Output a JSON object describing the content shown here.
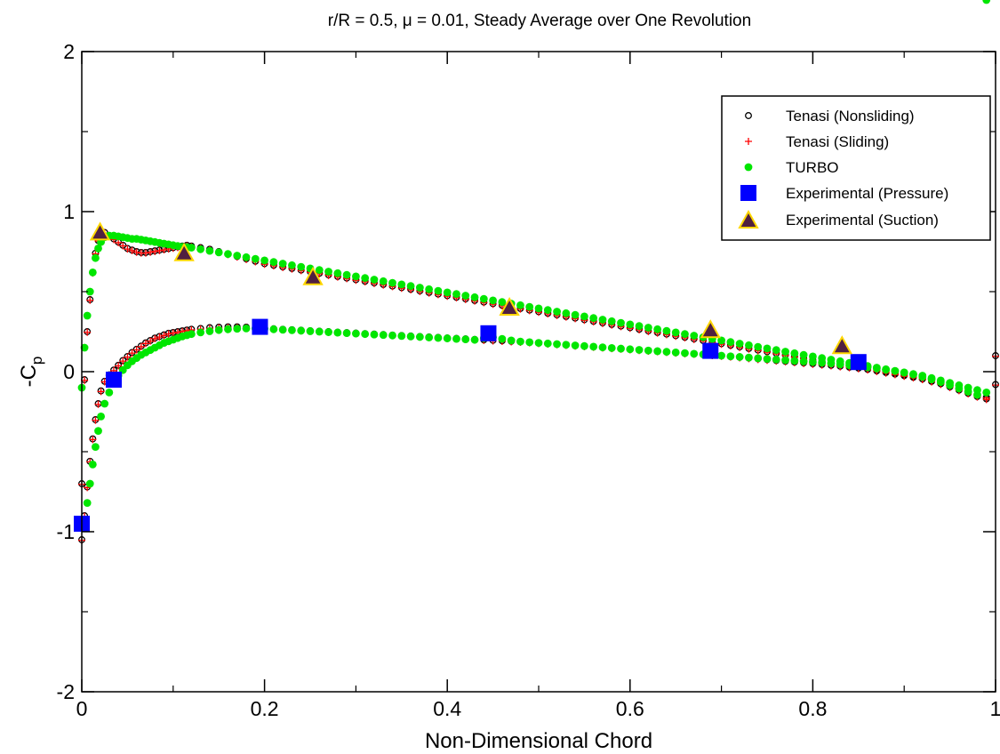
{
  "chart_data": {
    "type": "scatter",
    "title": "r/R = 0.5, μ = 0.01, Steady Average over One Revolution",
    "xlabel": "Non-Dimensional Chord",
    "ylabel_main": "-C",
    "ylabel_sub": "p",
    "xlim": [
      0,
      1
    ],
    "ylim": [
      -2,
      2
    ],
    "xticks": [
      0,
      0.2,
      0.4,
      0.6,
      0.8,
      1
    ],
    "xtick_labels": [
      "0",
      "0.2",
      "0.4",
      "0.6",
      "0.8",
      "1"
    ],
    "yticks": [
      -2,
      -1,
      0,
      1,
      2
    ],
    "ytick_labels": [
      "-2",
      "-1",
      "0",
      "1",
      "2"
    ],
    "grid": false,
    "legend_position": "top-right",
    "series": [
      {
        "name": "Tenasi (Nonsliding)",
        "marker": "open-circle",
        "color": "#000000",
        "upper_x": [
          0,
          0.003,
          0.006,
          0.009,
          0.012,
          0.015,
          0.018,
          0.021,
          0.025,
          0.03,
          0.035,
          0.04,
          0.045,
          0.05,
          0.055,
          0.06,
          0.065,
          0.07,
          0.075,
          0.08,
          0.085,
          0.09,
          0.095,
          0.1,
          0.105,
          0.11,
          0.115,
          0.12,
          0.13,
          0.14,
          0.15,
          0.16,
          0.17,
          0.18,
          0.19,
          0.2,
          0.21,
          0.22,
          0.23,
          0.24,
          0.25,
          0.26,
          0.27,
          0.28,
          0.29,
          0.3,
          0.31,
          0.32,
          0.33,
          0.34,
          0.35,
          0.36,
          0.37,
          0.38,
          0.39,
          0.4,
          0.41,
          0.42,
          0.43,
          0.44,
          0.45,
          0.46,
          0.47,
          0.48,
          0.49,
          0.5,
          0.51,
          0.52,
          0.53,
          0.54,
          0.55,
          0.56,
          0.57,
          0.58,
          0.59,
          0.6,
          0.61,
          0.62,
          0.63,
          0.64,
          0.65,
          0.66,
          0.67,
          0.68,
          0.69,
          0.7,
          0.71,
          0.72,
          0.73,
          0.74,
          0.75,
          0.76,
          0.77,
          0.78,
          0.79,
          0.8,
          0.81,
          0.82,
          0.83,
          0.84,
          0.85,
          0.86,
          0.87,
          0.88,
          0.89,
          0.9,
          0.91,
          0.92,
          0.93,
          0.94,
          0.95,
          0.96,
          0.97,
          0.98,
          0.99,
          1.0
        ],
        "upper_y": [
          -0.7,
          -0.05,
          0.25,
          0.45,
          0.62,
          0.74,
          0.82,
          0.86,
          0.87,
          0.85,
          0.83,
          0.81,
          0.79,
          0.77,
          0.76,
          0.75,
          0.745,
          0.745,
          0.75,
          0.755,
          0.76,
          0.765,
          0.77,
          0.775,
          0.78,
          0.785,
          0.79,
          0.785,
          0.775,
          0.765,
          0.75,
          0.735,
          0.72,
          0.705,
          0.69,
          0.675,
          0.665,
          0.655,
          0.645,
          0.635,
          0.625,
          0.615,
          0.605,
          0.595,
          0.585,
          0.575,
          0.565,
          0.555,
          0.545,
          0.535,
          0.525,
          0.515,
          0.505,
          0.495,
          0.485,
          0.475,
          0.465,
          0.455,
          0.445,
          0.435,
          0.425,
          0.415,
          0.405,
          0.395,
          0.385,
          0.375,
          0.365,
          0.355,
          0.345,
          0.335,
          0.325,
          0.315,
          0.305,
          0.295,
          0.285,
          0.275,
          0.265,
          0.255,
          0.245,
          0.235,
          0.225,
          0.215,
          0.205,
          0.195,
          0.185,
          0.175,
          0.165,
          0.155,
          0.145,
          0.135,
          0.125,
          0.115,
          0.105,
          0.095,
          0.085,
          0.075,
          0.065,
          0.055,
          0.045,
          0.035,
          0.025,
          0.015,
          0.005,
          -0.005,
          -0.015,
          -0.025,
          -0.035,
          -0.045,
          -0.06,
          -0.075,
          -0.09,
          -0.105,
          -0.12,
          -0.14,
          -0.16,
          0.1
        ],
        "lower_x": [
          0,
          0.003,
          0.006,
          0.009,
          0.012,
          0.015,
          0.018,
          0.021,
          0.025,
          0.03,
          0.035,
          0.04,
          0.045,
          0.05,
          0.055,
          0.06,
          0.065,
          0.07,
          0.075,
          0.08,
          0.085,
          0.09,
          0.095,
          0.1,
          0.105,
          0.11,
          0.115,
          0.12,
          0.13,
          0.14,
          0.15,
          0.16,
          0.17,
          0.18,
          0.19,
          0.2,
          0.21,
          0.22,
          0.23,
          0.24,
          0.25,
          0.26,
          0.27,
          0.28,
          0.29,
          0.3,
          0.31,
          0.32,
          0.33,
          0.34,
          0.35,
          0.36,
          0.37,
          0.38,
          0.39,
          0.4,
          0.41,
          0.42,
          0.43,
          0.44,
          0.45,
          0.46,
          0.47,
          0.48,
          0.49,
          0.5,
          0.51,
          0.52,
          0.53,
          0.54,
          0.55,
          0.56,
          0.57,
          0.58,
          0.59,
          0.6,
          0.61,
          0.62,
          0.63,
          0.64,
          0.65,
          0.66,
          0.67,
          0.68,
          0.69,
          0.7,
          0.71,
          0.72,
          0.73,
          0.74,
          0.75,
          0.76,
          0.77,
          0.78,
          0.79,
          0.8,
          0.81,
          0.82,
          0.83,
          0.84,
          0.85,
          0.86,
          0.87,
          0.88,
          0.89,
          0.9,
          0.91,
          0.92,
          0.93,
          0.94,
          0.95,
          0.96,
          0.97,
          0.98,
          0.99,
          1.0
        ],
        "lower_y": [
          -1.05,
          -0.9,
          -0.72,
          -0.56,
          -0.42,
          -0.3,
          -0.2,
          -0.12,
          -0.06,
          -0.02,
          0.01,
          0.04,
          0.07,
          0.095,
          0.12,
          0.14,
          0.16,
          0.18,
          0.195,
          0.21,
          0.22,
          0.23,
          0.24,
          0.245,
          0.25,
          0.255,
          0.26,
          0.265,
          0.27,
          0.275,
          0.278,
          0.28,
          0.28,
          0.278,
          0.275,
          0.272,
          0.268,
          0.265,
          0.262,
          0.259,
          0.256,
          0.253,
          0.25,
          0.247,
          0.244,
          0.241,
          0.238,
          0.235,
          0.232,
          0.229,
          0.226,
          0.223,
          0.22,
          0.217,
          0.214,
          0.211,
          0.208,
          0.205,
          0.202,
          0.199,
          0.196,
          0.193,
          0.19,
          0.187,
          0.184,
          0.18,
          0.176,
          0.172,
          0.168,
          0.164,
          0.16,
          0.156,
          0.152,
          0.148,
          0.144,
          0.14,
          0.136,
          0.132,
          0.128,
          0.124,
          0.12,
          0.116,
          0.112,
          0.108,
          0.104,
          0.1,
          0.095,
          0.09,
          0.085,
          0.08,
          0.075,
          0.07,
          0.065,
          0.06,
          0.055,
          0.05,
          0.045,
          0.04,
          0.034,
          0.028,
          0.022,
          0.015,
          0.008,
          0.001,
          -0.008,
          -0.018,
          -0.03,
          -0.045,
          -0.06,
          -0.075,
          -0.095,
          -0.115,
          -0.135,
          -0.155,
          -0.17,
          -0.08
        ]
      },
      {
        "name": "Tenasi (Sliding)",
        "marker": "plus",
        "color": "#ff0000"
      },
      {
        "name": "TURBO",
        "marker": "filled-circle",
        "color": "#00e600",
        "upper_x": [
          0,
          0.003,
          0.006,
          0.009,
          0.012,
          0.015,
          0.018,
          0.021,
          0.025,
          0.03,
          0.035,
          0.04,
          0.045,
          0.05,
          0.055,
          0.06,
          0.065,
          0.07,
          0.075,
          0.08,
          0.085,
          0.09,
          0.095,
          0.1,
          0.105,
          0.11,
          0.115,
          0.12,
          0.13,
          0.14,
          0.15,
          0.16,
          0.17,
          0.18,
          0.19,
          0.2,
          0.21,
          0.22,
          0.23,
          0.24,
          0.25,
          0.26,
          0.27,
          0.28,
          0.29,
          0.3,
          0.31,
          0.32,
          0.33,
          0.34,
          0.35,
          0.36,
          0.37,
          0.38,
          0.39,
          0.4,
          0.41,
          0.42,
          0.43,
          0.44,
          0.45,
          0.46,
          0.47,
          0.48,
          0.49,
          0.5,
          0.51,
          0.52,
          0.53,
          0.54,
          0.55,
          0.56,
          0.57,
          0.58,
          0.59,
          0.6,
          0.61,
          0.62,
          0.63,
          0.64,
          0.65,
          0.66,
          0.67,
          0.68,
          0.69,
          0.7,
          0.71,
          0.72,
          0.73,
          0.74,
          0.75,
          0.76,
          0.77,
          0.78,
          0.79,
          0.8,
          0.81,
          0.82,
          0.83,
          0.84,
          0.85,
          0.86,
          0.87,
          0.88,
          0.89,
          0.9,
          0.91,
          0.92,
          0.93,
          0.94,
          0.95,
          0.96,
          0.97,
          0.98,
          0.99
        ],
        "upper_y": [
          -0.1,
          0.15,
          0.35,
          0.5,
          0.62,
          0.71,
          0.77,
          0.81,
          0.84,
          0.85,
          0.85,
          0.845,
          0.84,
          0.835,
          0.83,
          0.83,
          0.825,
          0.82,
          0.815,
          0.81,
          0.805,
          0.8,
          0.795,
          0.79,
          0.785,
          0.78,
          0.778,
          0.775,
          0.765,
          0.755,
          0.745,
          0.735,
          0.725,
          0.715,
          0.705,
          0.695,
          0.685,
          0.675,
          0.665,
          0.655,
          0.645,
          0.635,
          0.625,
          0.615,
          0.605,
          0.595,
          0.585,
          0.575,
          0.565,
          0.555,
          0.545,
          0.535,
          0.525,
          0.515,
          0.505,
          0.495,
          0.485,
          0.475,
          0.465,
          0.455,
          0.445,
          0.435,
          0.425,
          0.415,
          0.405,
          0.395,
          0.385,
          0.375,
          0.365,
          0.355,
          0.345,
          0.335,
          0.325,
          0.315,
          0.305,
          0.295,
          0.285,
          0.275,
          0.265,
          0.255,
          0.245,
          0.235,
          0.225,
          0.215,
          0.205,
          0.195,
          0.185,
          0.175,
          0.165,
          0.155,
          0.145,
          0.135,
          0.125,
          0.115,
          0.105,
          0.095,
          0.085,
          0.075,
          0.065,
          0.055,
          0.045,
          0.035,
          0.025,
          0.015,
          0.005,
          -0.005,
          -0.015,
          -0.025,
          -0.04,
          -0.055,
          -0.07,
          -0.085,
          -0.1,
          -0.115,
          -0.13
        ],
        "lower_x": [
          0.003,
          0.006,
          0.009,
          0.012,
          0.015,
          0.018,
          0.021,
          0.025,
          0.03,
          0.035,
          0.04,
          0.045,
          0.05,
          0.055,
          0.06,
          0.065,
          0.07,
          0.075,
          0.08,
          0.085,
          0.09,
          0.095,
          0.1,
          0.105,
          0.11,
          0.115,
          0.12,
          0.13,
          0.14,
          0.15,
          0.16,
          0.17,
          0.18,
          0.19,
          0.2,
          0.21,
          0.22,
          0.23,
          0.24,
          0.25,
          0.26,
          0.27,
          0.28,
          0.29,
          0.3,
          0.31,
          0.32,
          0.33,
          0.34,
          0.35,
          0.36,
          0.37,
          0.38,
          0.39,
          0.4,
          0.41,
          0.42,
          0.43,
          0.44,
          0.45,
          0.46,
          0.47,
          0.48,
          0.49,
          0.5,
          0.51,
          0.52,
          0.53,
          0.54,
          0.55,
          0.56,
          0.57,
          0.58,
          0.59,
          0.6,
          0.61,
          0.62,
          0.63,
          0.64,
          0.65,
          0.66,
          0.67,
          0.68,
          0.69,
          0.7,
          0.71,
          0.72,
          0.73,
          0.74,
          0.75,
          0.76,
          0.77,
          0.78,
          0.79,
          0.8,
          0.81,
          0.82,
          0.83,
          0.84,
          0.85,
          0.86,
          0.87,
          0.88,
          0.89,
          0.9,
          0.91,
          0.92,
          0.93,
          0.94,
          0.95,
          0.96,
          0.97,
          0.98,
          0.99
        ],
        "lower_y": [
          -0.95,
          -0.82,
          -0.7,
          -0.58,
          -0.47,
          -0.37,
          -0.28,
          -0.2,
          -0.13,
          -0.07,
          -0.025,
          0.01,
          0.04,
          0.065,
          0.085,
          0.105,
          0.12,
          0.135,
          0.15,
          0.165,
          0.18,
          0.19,
          0.2,
          0.21,
          0.22,
          0.228,
          0.235,
          0.245,
          0.253,
          0.26,
          0.265,
          0.268,
          0.27,
          0.27,
          0.268,
          0.265,
          0.262,
          0.259,
          0.256,
          0.253,
          0.25,
          0.247,
          0.244,
          0.241,
          0.238,
          0.235,
          0.232,
          0.229,
          0.226,
          0.223,
          0.22,
          0.217,
          0.214,
          0.211,
          0.208,
          0.205,
          0.202,
          0.199,
          0.21,
          0.215,
          0.205,
          0.195,
          0.188,
          0.184,
          0.18,
          0.176,
          0.172,
          0.168,
          0.164,
          0.16,
          0.156,
          0.152,
          0.148,
          0.144,
          0.14,
          0.136,
          0.132,
          0.128,
          0.124,
          0.12,
          0.116,
          0.112,
          0.108,
          0.104,
          0.1,
          0.096,
          0.092,
          0.088,
          0.084,
          0.08,
          0.076,
          0.072,
          0.068,
          0.064,
          0.06,
          0.056,
          0.052,
          0.046,
          0.04,
          0.034,
          0.028,
          0.02,
          0.012,
          0.004,
          -0.006,
          -0.018,
          -0.032,
          -0.048,
          -0.065,
          -0.085,
          -0.105,
          -0.125,
          -0.145
        ]
      },
      {
        "name": "Experimental (Pressure)",
        "marker": "square",
        "color": "#0000ff",
        "x": [
          0.0,
          0.035,
          0.195,
          0.445,
          0.688,
          0.85
        ],
        "y": [
          -0.95,
          -0.05,
          0.28,
          0.24,
          0.13,
          0.06
        ]
      },
      {
        "name": "Experimental (Suction)",
        "marker": "triangle",
        "color": "#502040",
        "edge_color": "#ffd700",
        "x": [
          0.02,
          0.112,
          0.253,
          0.468,
          0.688,
          0.832
        ],
        "y": [
          0.87,
          0.74,
          0.59,
          0.4,
          0.26,
          0.16
        ]
      }
    ]
  }
}
